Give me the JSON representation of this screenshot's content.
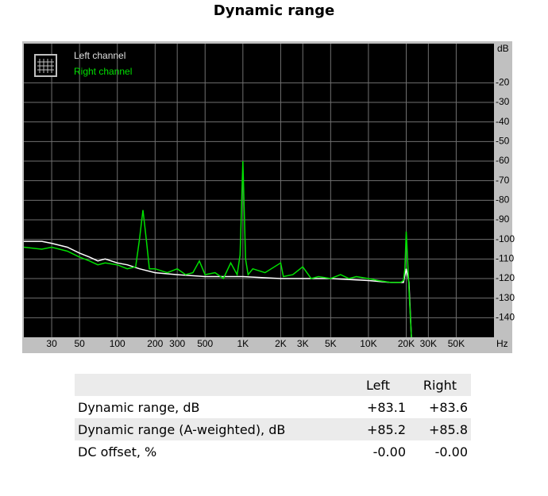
{
  "title": "Dynamic range",
  "chart_data": {
    "type": "line",
    "xscale": "log",
    "grid": true,
    "xlim": [
      18,
      100000
    ],
    "ylim": [
      -150,
      0
    ],
    "ylabel": "dB",
    "xlabel": "Hz",
    "yticks": [
      -20,
      -30,
      -40,
      -50,
      -60,
      -70,
      -80,
      -90,
      -100,
      -110,
      -120,
      -130,
      -140
    ],
    "xticks": [
      30,
      50,
      100,
      200,
      300,
      500,
      {
        "value": 1000,
        "label": "1K"
      },
      {
        "value": 2000,
        "label": "2K"
      },
      {
        "value": 3000,
        "label": "3K"
      },
      {
        "value": 5000,
        "label": "5K"
      },
      {
        "value": 10000,
        "label": "10K"
      },
      {
        "value": 20000,
        "label": "20K"
      },
      {
        "value": 30000,
        "label": "30K"
      },
      {
        "value": 50000,
        "label": "50K"
      }
    ],
    "series": [
      {
        "name": "Left channel",
        "color": "#ffffff",
        "x": [
          18,
          25,
          30,
          40,
          50,
          60,
          70,
          80,
          100,
          120,
          150,
          200,
          300,
          500,
          1000,
          2000,
          5000,
          10000,
          15000,
          19000,
          20000,
          21000,
          22000
        ],
        "values": [
          -101,
          -101,
          -102,
          -104,
          -107,
          -109,
          -111,
          -110,
          -112,
          -113,
          -115,
          -117,
          -118,
          -119,
          -119,
          -120,
          -120,
          -121,
          -122,
          -122,
          -115,
          -122,
          -150
        ]
      },
      {
        "name": "Right channel",
        "color": "#00e000",
        "x": [
          18,
          25,
          30,
          40,
          50,
          60,
          70,
          80,
          100,
          120,
          140,
          150,
          160,
          170,
          180,
          200,
          250,
          300,
          350,
          400,
          450,
          500,
          600,
          700,
          800,
          900,
          950,
          1000,
          1050,
          1100,
          1200,
          1500,
          2000,
          2100,
          2500,
          3000,
          3500,
          4000,
          5000,
          6000,
          7000,
          8000,
          10000,
          12000,
          15000,
          18000,
          19000,
          19500,
          20000,
          20500,
          21000,
          22000
        ],
        "values": [
          -104,
          -105,
          -104,
          -106,
          -109,
          -111,
          -113,
          -112,
          -113,
          -115,
          -114,
          -100,
          -85,
          -100,
          -115,
          -115,
          -117,
          -115,
          -118,
          -117,
          -111,
          -118,
          -117,
          -120,
          -112,
          -118,
          -108,
          -60,
          -110,
          -118,
          -115,
          -117,
          -112,
          -119,
          -118,
          -114,
          -120,
          -119,
          -120,
          -118,
          -120,
          -119,
          -120,
          -121,
          -122,
          -122,
          -121,
          -115,
          -96,
          -110,
          -125,
          -150
        ]
      }
    ]
  },
  "table": {
    "headers": [
      "Left",
      "Right"
    ],
    "rows": [
      {
        "label": "Dynamic range, dB",
        "values": [
          "+83.1",
          "+83.6"
        ]
      },
      {
        "label": "Dynamic range (A-weighted), dB",
        "values": [
          "+85.2",
          "+85.8"
        ]
      },
      {
        "label": "DC offset, %",
        "values": [
          "-0.00",
          "-0.00"
        ]
      }
    ]
  }
}
